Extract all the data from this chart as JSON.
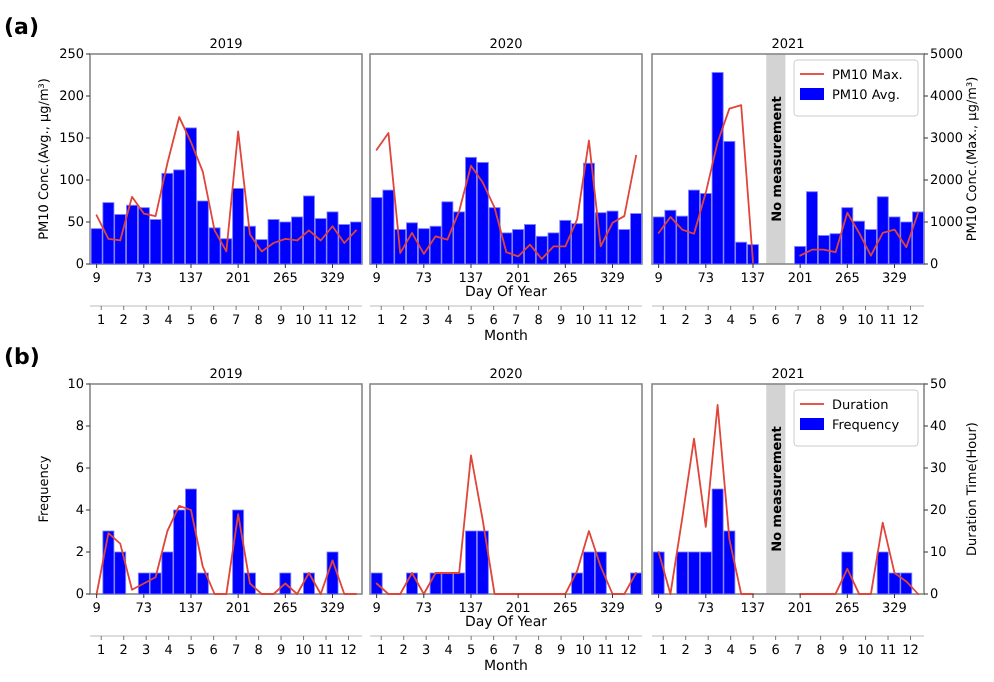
{
  "chart_data": [
    {
      "type": "bar",
      "title": "2019",
      "ylabel": "PM10 Conc.(Avg., μg/m³)",
      "annotations": [
        "(a)"
      ],
      "x": [
        9,
        25,
        41,
        57,
        73,
        89,
        105,
        121,
        137,
        153,
        169,
        185,
        201,
        217,
        233,
        249,
        265,
        281,
        297,
        313,
        329,
        345,
        361
      ],
      "xlim": [
        0,
        369
      ],
      "xticks": [
        9,
        73,
        137,
        201,
        265,
        329
      ],
      "x2lim": [
        0.5,
        12.6
      ],
      "x2ticks": [
        1,
        2,
        3,
        4,
        5,
        6,
        7,
        8,
        9,
        10,
        11,
        12
      ],
      "ylim": [
        0,
        250
      ],
      "yticks": [
        0,
        50,
        100,
        150,
        200,
        250
      ],
      "y2lim": [
        0,
        5000
      ],
      "tick_labels": "xy",
      "series": [
        {
          "color": "#0000ff",
          "values": [
            42,
            73,
            59,
            70,
            67,
            53,
            108,
            112,
            162,
            75,
            43,
            30,
            90,
            45,
            29,
            53,
            50,
            56,
            81,
            54,
            62,
            47,
            50
          ]
        },
        {
          "type": "line",
          "axis": "y2",
          "color": "#e0453a",
          "values": [
            1160,
            600,
            560,
            1600,
            1200,
            1140,
            2400,
            3500,
            2900,
            2200,
            800,
            300,
            3160,
            700,
            300,
            500,
            600,
            560,
            800,
            560,
            900,
            500,
            800
          ]
        }
      ]
    },
    {
      "type": "bar",
      "title": "2020",
      "xlabel": "Day Of Year",
      "x2label": "Month",
      "x": [
        9,
        25,
        41,
        57,
        73,
        89,
        105,
        121,
        137,
        153,
        169,
        185,
        201,
        217,
        233,
        249,
        265,
        281,
        297,
        313,
        329,
        345,
        361
      ],
      "xlim": [
        0,
        369
      ],
      "xticks": [
        9,
        73,
        137,
        201,
        265,
        329
      ],
      "x2lim": [
        0.5,
        12.6
      ],
      "x2ticks": [
        1,
        2,
        3,
        4,
        5,
        6,
        7,
        8,
        9,
        10,
        11,
        12
      ],
      "ylim": [
        0,
        250
      ],
      "y2lim": [
        0,
        5000
      ],
      "tick_labels": "x",
      "series": [
        {
          "color": "#0000ff",
          "values": [
            79,
            88,
            41,
            49,
            42,
            45,
            74,
            62,
            127,
            121,
            67,
            37,
            41,
            47,
            33,
            37,
            52,
            48,
            120,
            61,
            63,
            41,
            60
          ]
        },
        {
          "type": "line",
          "axis": "y2",
          "color": "#e0453a",
          "values": [
            2720,
            3120,
            260,
            740,
            240,
            660,
            580,
            1260,
            2340,
            1940,
            1340,
            280,
            180,
            460,
            120,
            420,
            420,
            1060,
            2940,
            420,
            980,
            1140,
            2580
          ]
        }
      ]
    },
    {
      "type": "bar",
      "title": "2021",
      "y2label": "PM10 Conc.(Max., μg/m³)",
      "legend": "top right",
      "x": [
        9,
        25,
        41,
        57,
        73,
        89,
        105,
        121,
        137,
        153,
        169,
        185,
        201,
        217,
        233,
        249,
        265,
        281,
        297,
        313,
        329,
        345,
        361
      ],
      "xlim": [
        0,
        369
      ],
      "xticks": [
        9,
        73,
        137,
        201,
        265,
        329
      ],
      "x2lim": [
        0.5,
        12.6
      ],
      "x2ticks": [
        1,
        2,
        3,
        4,
        5,
        6,
        7,
        8,
        9,
        10,
        11,
        12
      ],
      "ylim": [
        0,
        250
      ],
      "y2lim": [
        0,
        5000
      ],
      "y2ticks": [
        0,
        1000,
        2000,
        3000,
        4000,
        5000
      ],
      "tick_labels": "xy2",
      "bands": [
        {
          "axis": "x",
          "from": 155,
          "to": 181,
          "label": "No measurement",
          "color": "#d3d3d3"
        }
      ],
      "series": [
        {
          "name": "PM10 Avg.",
          "color": "#0000ff",
          "values": [
            56,
            64,
            57,
            88,
            84,
            228,
            146,
            26,
            23,
            null,
            null,
            null,
            21,
            86,
            34,
            36,
            67,
            51,
            41,
            80,
            56,
            50,
            62
          ]
        },
        {
          "name": "PM10 Max.",
          "type": "line",
          "axis": "y2",
          "color": "#e0453a",
          "values": [
            740,
            1120,
            820,
            720,
            1700,
            2900,
            3700,
            3780,
            40,
            null,
            null,
            null,
            200,
            340,
            340,
            280,
            1220,
            740,
            200,
            740,
            820,
            400,
            1220
          ]
        }
      ]
    },
    {
      "type": "bar",
      "title": "2019",
      "ylabel": "Frequency",
      "annotations": [
        "(b)"
      ],
      "x": [
        9,
        25,
        41,
        57,
        73,
        89,
        105,
        121,
        137,
        153,
        169,
        185,
        201,
        217,
        233,
        249,
        265,
        281,
        297,
        313,
        329,
        345,
        361
      ],
      "xlim": [
        0,
        369
      ],
      "xticks": [
        9,
        73,
        137,
        201,
        265,
        329
      ],
      "x2lim": [
        0.5,
        12.6
      ],
      "x2ticks": [
        1,
        2,
        3,
        4,
        5,
        6,
        7,
        8,
        9,
        10,
        11,
        12
      ],
      "ylim": [
        0,
        10
      ],
      "yticks": [
        0,
        2,
        4,
        6,
        8,
        10
      ],
      "y2lim": [
        0,
        50
      ],
      "tick_labels": "xy",
      "series": [
        {
          "color": "#0000ff",
          "values": [
            0,
            3,
            2,
            0,
            1,
            1,
            2,
            4,
            5,
            1,
            0,
            0,
            4,
            1,
            0,
            0,
            1,
            0,
            1,
            0,
            2,
            0,
            0
          ]
        },
        {
          "type": "line",
          "axis": "y2",
          "color": "#e0453a",
          "values": [
            0,
            14.5,
            12,
            1,
            2.5,
            4,
            15,
            21,
            20,
            6.5,
            0,
            0,
            19,
            2.5,
            0,
            0,
            2.5,
            0,
            5,
            0,
            8,
            0,
            0
          ]
        }
      ]
    },
    {
      "type": "bar",
      "title": "2020",
      "xlabel": "Day Of Year",
      "x2label": "Month",
      "x": [
        9,
        25,
        41,
        57,
        73,
        89,
        105,
        121,
        137,
        153,
        169,
        185,
        201,
        217,
        233,
        249,
        265,
        281,
        297,
        313,
        329,
        345,
        361
      ],
      "xlim": [
        0,
        369
      ],
      "xticks": [
        9,
        73,
        137,
        201,
        265,
        329
      ],
      "x2lim": [
        0.5,
        12.6
      ],
      "x2ticks": [
        1,
        2,
        3,
        4,
        5,
        6,
        7,
        8,
        9,
        10,
        11,
        12
      ],
      "ylim": [
        0,
        10
      ],
      "y2lim": [
        0,
        50
      ],
      "tick_labels": "x",
      "series": [
        {
          "color": "#0000ff",
          "values": [
            1,
            0,
            0,
            1,
            0,
            1,
            1,
            1,
            3,
            3,
            0,
            0,
            0,
            0,
            0,
            0,
            0,
            1,
            2,
            2,
            0,
            0,
            1
          ]
        },
        {
          "type": "line",
          "axis": "y2",
          "color": "#e0453a",
          "values": [
            2.5,
            0,
            0,
            5,
            0,
            5,
            5,
            5,
            33,
            17.5,
            0,
            0,
            0,
            0,
            0,
            0,
            0,
            5.5,
            15,
            6.5,
            0,
            0,
            5
          ]
        }
      ]
    },
    {
      "type": "bar",
      "title": "2021",
      "y2label": "Duration Time(Hour)",
      "legend": "top right",
      "x": [
        9,
        25,
        41,
        57,
        73,
        89,
        105,
        121,
        137,
        153,
        169,
        185,
        201,
        217,
        233,
        249,
        265,
        281,
        297,
        313,
        329,
        345,
        361
      ],
      "xlim": [
        0,
        369
      ],
      "xticks": [
        9,
        73,
        137,
        201,
        265,
        329
      ],
      "x2lim": [
        0.5,
        12.6
      ],
      "x2ticks": [
        1,
        2,
        3,
        4,
        5,
        6,
        7,
        8,
        9,
        10,
        11,
        12
      ],
      "ylim": [
        0,
        10
      ],
      "y2lim": [
        0,
        50
      ],
      "y2ticks": [
        0,
        10,
        20,
        30,
        40,
        50
      ],
      "tick_labels": "xy2",
      "bands": [
        {
          "axis": "x",
          "from": 155,
          "to": 181,
          "label": "No measurement",
          "color": "#d3d3d3"
        }
      ],
      "series": [
        {
          "name": "Frequency",
          "color": "#0000ff",
          "values": [
            2,
            0,
            2,
            2,
            2,
            5,
            3,
            0,
            0,
            null,
            null,
            null,
            0,
            0,
            0,
            0,
            2,
            0,
            0,
            2,
            1,
            1,
            0
          ]
        },
        {
          "name": "Duration",
          "type": "line",
          "axis": "y2",
          "color": "#e0453a",
          "values": [
            10,
            0,
            18,
            37,
            16,
            45,
            13,
            0,
            0,
            null,
            null,
            null,
            0,
            0,
            0,
            0,
            6,
            0,
            0,
            17,
            5,
            3,
            0
          ]
        }
      ]
    }
  ]
}
